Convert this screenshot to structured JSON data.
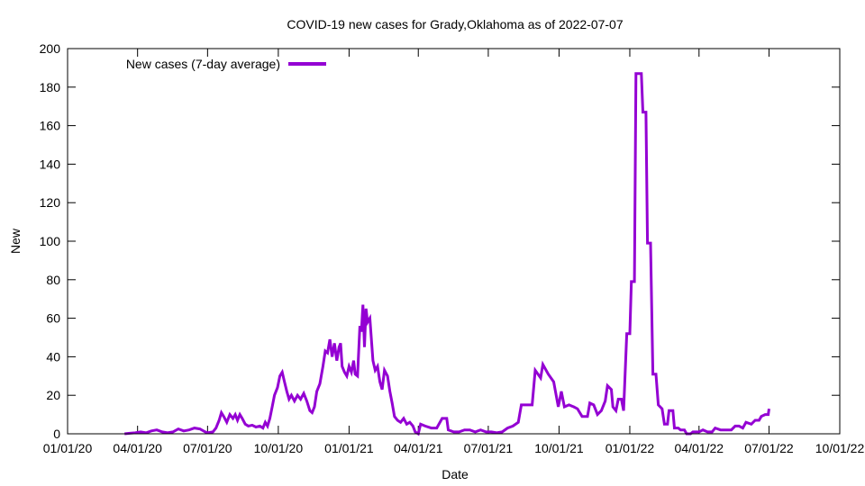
{
  "chart_data": {
    "type": "line",
    "title": "COVID-19 new cases for Grady,Oklahoma as of 2022-07-07",
    "xlabel": "Date",
    "ylabel": "New",
    "xlim": [
      "2020-01-01",
      "2022-10-01"
    ],
    "ylim": [
      0,
      200
    ],
    "x_ticks": [
      "01/01/20",
      "04/01/20",
      "07/01/20",
      "10/01/20",
      "01/01/21",
      "04/01/21",
      "07/01/21",
      "10/01/21",
      "01/01/22",
      "04/01/22",
      "07/01/22",
      "10/01/22"
    ],
    "y_ticks": [
      0,
      20,
      40,
      60,
      80,
      100,
      120,
      140,
      160,
      180,
      200
    ],
    "grid": false,
    "legend_position": "top-left",
    "color": "#9400d3",
    "series": [
      {
        "name": "New cases (7-day average)",
        "points": [
          [
            "2020-03-15",
            0
          ],
          [
            "2020-03-22",
            0.3
          ],
          [
            "2020-03-29",
            0.5
          ],
          [
            "2020-04-05",
            1
          ],
          [
            "2020-04-12",
            0.5
          ],
          [
            "2020-04-19",
            1.5
          ],
          [
            "2020-04-26",
            2
          ],
          [
            "2020-05-03",
            1
          ],
          [
            "2020-05-10",
            0.5
          ],
          [
            "2020-05-17",
            1
          ],
          [
            "2020-05-24",
            2.5
          ],
          [
            "2020-05-31",
            1.5
          ],
          [
            "2020-06-07",
            2
          ],
          [
            "2020-06-14",
            3
          ],
          [
            "2020-06-21",
            2.5
          ],
          [
            "2020-06-28",
            1
          ],
          [
            "2020-07-01",
            0.5
          ],
          [
            "2020-07-08",
            1
          ],
          [
            "2020-07-12",
            3
          ],
          [
            "2020-07-16",
            7
          ],
          [
            "2020-07-19",
            11
          ],
          [
            "2020-07-22",
            9
          ],
          [
            "2020-07-26",
            6
          ],
          [
            "2020-07-30",
            10
          ],
          [
            "2020-08-03",
            8
          ],
          [
            "2020-08-06",
            10
          ],
          [
            "2020-08-09",
            7
          ],
          [
            "2020-08-12",
            10
          ],
          [
            "2020-08-15",
            8
          ],
          [
            "2020-08-19",
            5
          ],
          [
            "2020-08-23",
            4
          ],
          [
            "2020-08-28",
            4.5
          ],
          [
            "2020-09-02",
            3.5
          ],
          [
            "2020-09-07",
            4
          ],
          [
            "2020-09-11",
            3
          ],
          [
            "2020-09-14",
            6
          ],
          [
            "2020-09-17",
            4
          ],
          [
            "2020-09-20",
            8
          ],
          [
            "2020-09-23",
            14
          ],
          [
            "2020-09-26",
            20
          ],
          [
            "2020-09-30",
            24
          ],
          [
            "2020-10-03",
            30
          ],
          [
            "2020-10-06",
            32
          ],
          [
            "2020-10-09",
            27
          ],
          [
            "2020-10-12",
            22
          ],
          [
            "2020-10-15",
            18
          ],
          [
            "2020-10-18",
            20
          ],
          [
            "2020-10-22",
            17
          ],
          [
            "2020-10-26",
            20
          ],
          [
            "2020-10-30",
            18
          ],
          [
            "2020-11-03",
            21
          ],
          [
            "2020-11-07",
            17
          ],
          [
            "2020-11-11",
            12
          ],
          [
            "2020-11-14",
            11
          ],
          [
            "2020-11-17",
            14
          ],
          [
            "2020-11-20",
            22
          ],
          [
            "2020-11-24",
            26
          ],
          [
            "2020-11-28",
            35
          ],
          [
            "2020-12-01",
            43
          ],
          [
            "2020-12-04",
            42
          ],
          [
            "2020-12-07",
            49
          ],
          [
            "2020-12-10",
            40
          ],
          [
            "2020-12-13",
            47
          ],
          [
            "2020-12-16",
            38
          ],
          [
            "2020-12-19",
            45
          ],
          [
            "2020-12-21",
            47
          ],
          [
            "2020-12-23",
            35
          ],
          [
            "2020-12-26",
            32
          ],
          [
            "2020-12-29",
            30
          ],
          [
            "2021-01-01",
            35
          ],
          [
            "2021-01-04",
            32
          ],
          [
            "2021-01-07",
            38
          ],
          [
            "2021-01-09",
            31
          ],
          [
            "2021-01-12",
            30
          ],
          [
            "2021-01-15",
            56
          ],
          [
            "2021-01-17",
            53
          ],
          [
            "2021-01-19",
            67
          ],
          [
            "2021-01-21",
            45
          ],
          [
            "2021-01-23",
            65
          ],
          [
            "2021-01-25",
            58
          ],
          [
            "2021-01-28",
            60
          ],
          [
            "2021-02-01",
            38
          ],
          [
            "2021-02-04",
            33
          ],
          [
            "2021-02-07",
            35
          ],
          [
            "2021-02-10",
            27
          ],
          [
            "2021-02-13",
            23
          ],
          [
            "2021-02-16",
            33
          ],
          [
            "2021-02-20",
            30
          ],
          [
            "2021-02-23",
            22
          ],
          [
            "2021-02-26",
            16
          ],
          [
            "2021-03-01",
            9
          ],
          [
            "2021-03-05",
            7
          ],
          [
            "2021-03-09",
            6
          ],
          [
            "2021-03-13",
            8
          ],
          [
            "2021-03-17",
            5
          ],
          [
            "2021-03-21",
            6
          ],
          [
            "2021-03-25",
            4
          ],
          [
            "2021-03-28",
            1
          ],
          [
            "2021-04-01",
            0
          ],
          [
            "2021-04-04",
            5
          ],
          [
            "2021-04-10",
            4
          ],
          [
            "2021-04-18",
            3
          ],
          [
            "2021-04-25",
            3
          ],
          [
            "2021-05-02",
            8
          ],
          [
            "2021-05-08",
            8
          ],
          [
            "2021-05-10",
            2
          ],
          [
            "2021-05-17",
            1
          ],
          [
            "2021-05-24",
            1
          ],
          [
            "2021-05-31",
            2
          ],
          [
            "2021-06-07",
            2
          ],
          [
            "2021-06-14",
            1
          ],
          [
            "2021-06-21",
            2
          ],
          [
            "2021-06-28",
            1
          ],
          [
            "2021-07-05",
            1
          ],
          [
            "2021-07-12",
            0.5
          ],
          [
            "2021-07-19",
            1
          ],
          [
            "2021-07-26",
            3
          ],
          [
            "2021-08-02",
            4
          ],
          [
            "2021-08-09",
            6
          ],
          [
            "2021-08-13",
            15
          ],
          [
            "2021-08-20",
            15
          ],
          [
            "2021-08-27",
            15
          ],
          [
            "2021-08-31",
            33
          ],
          [
            "2021-09-07",
            29
          ],
          [
            "2021-09-10",
            36
          ],
          [
            "2021-09-17",
            31
          ],
          [
            "2021-09-24",
            27
          ],
          [
            "2021-09-30",
            14
          ],
          [
            "2021-10-04",
            22
          ],
          [
            "2021-10-08",
            14
          ],
          [
            "2021-10-14",
            15
          ],
          [
            "2021-10-20",
            14
          ],
          [
            "2021-10-25",
            13
          ],
          [
            "2021-10-31",
            9
          ],
          [
            "2021-11-07",
            9
          ],
          [
            "2021-11-10",
            16
          ],
          [
            "2021-11-15",
            15
          ],
          [
            "2021-11-20",
            10
          ],
          [
            "2021-11-25",
            12
          ],
          [
            "2021-11-30",
            17
          ],
          [
            "2021-12-03",
            25
          ],
          [
            "2021-12-08",
            23
          ],
          [
            "2021-12-10",
            14
          ],
          [
            "2021-12-14",
            12
          ],
          [
            "2021-12-17",
            18
          ],
          [
            "2021-12-21",
            18
          ],
          [
            "2021-12-24",
            12
          ],
          [
            "2021-12-28",
            52
          ],
          [
            "2022-01-01",
            52
          ],
          [
            "2022-01-03",
            79
          ],
          [
            "2022-01-07",
            79
          ],
          [
            "2022-01-09",
            187
          ],
          [
            "2022-01-16",
            187
          ],
          [
            "2022-01-18",
            167
          ],
          [
            "2022-01-22",
            167
          ],
          [
            "2022-01-24",
            99
          ],
          [
            "2022-01-28",
            99
          ],
          [
            "2022-01-31",
            31
          ],
          [
            "2022-02-04",
            31
          ],
          [
            "2022-02-07",
            15
          ],
          [
            "2022-02-12",
            13
          ],
          [
            "2022-02-15",
            5
          ],
          [
            "2022-02-19",
            5
          ],
          [
            "2022-02-21",
            12
          ],
          [
            "2022-02-26",
            12
          ],
          [
            "2022-02-28",
            3
          ],
          [
            "2022-03-05",
            3
          ],
          [
            "2022-03-08",
            2
          ],
          [
            "2022-03-13",
            2
          ],
          [
            "2022-03-16",
            0
          ],
          [
            "2022-03-21",
            0
          ],
          [
            "2022-03-24",
            1
          ],
          [
            "2022-04-01",
            1
          ],
          [
            "2022-04-06",
            2
          ],
          [
            "2022-04-12",
            1
          ],
          [
            "2022-04-18",
            1
          ],
          [
            "2022-04-22",
            3
          ],
          [
            "2022-04-29",
            2
          ],
          [
            "2022-05-06",
            2
          ],
          [
            "2022-05-13",
            2
          ],
          [
            "2022-05-18",
            4
          ],
          [
            "2022-05-23",
            4
          ],
          [
            "2022-05-28",
            3
          ],
          [
            "2022-06-01",
            6
          ],
          [
            "2022-06-08",
            5
          ],
          [
            "2022-06-13",
            7
          ],
          [
            "2022-06-18",
            7
          ],
          [
            "2022-06-21",
            9
          ],
          [
            "2022-06-26",
            10
          ],
          [
            "2022-06-30",
            10
          ],
          [
            "2022-07-01",
            13
          ]
        ]
      }
    ]
  }
}
